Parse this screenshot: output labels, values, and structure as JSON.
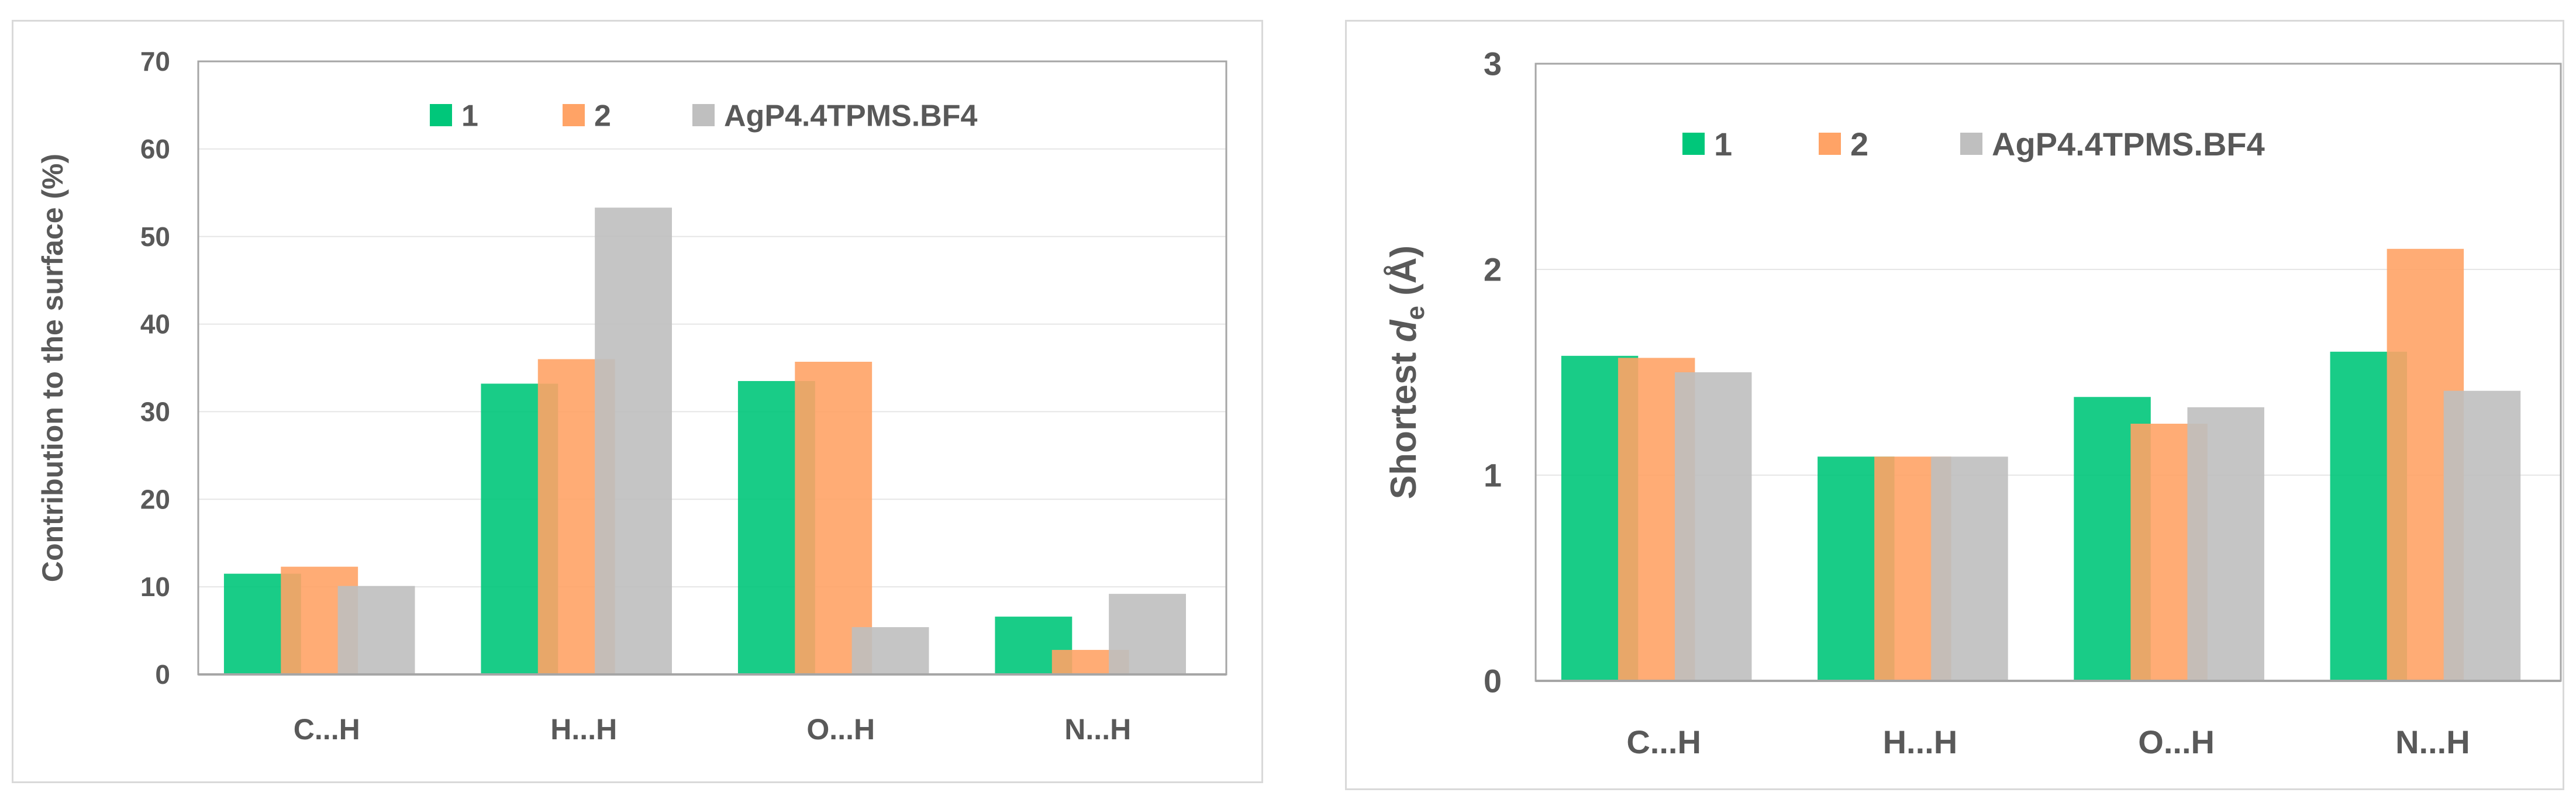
{
  "chart_data": [
    {
      "type": "bar",
      "title": "",
      "xlabel": "",
      "ylabel": "Contribution  to the surface  (%)",
      "ylim": [
        0,
        70
      ],
      "yticks": [
        0,
        10,
        20,
        30,
        40,
        50,
        60,
        70
      ],
      "grid": true,
      "legend_position": "top",
      "categories": [
        "C...H",
        "H...H",
        "O...H",
        "N...H"
      ],
      "series": [
        {
          "name": "1",
          "color": "#00c77a",
          "values": [
            11.5,
            33.2,
            33.5,
            6.6
          ]
        },
        {
          "name": "2",
          "color": "#ffa366",
          "values": [
            12.3,
            36.0,
            35.7,
            2.8
          ]
        },
        {
          "name": "AgP4.4TPMS.BF4",
          "color": "#bfbfbf",
          "values": [
            10.1,
            53.3,
            5.4,
            9.2
          ]
        }
      ]
    },
    {
      "type": "bar",
      "title": "",
      "xlabel": "",
      "ylabel_prefix": "Shortest ",
      "ylabel_var": "d",
      "ylabel_sub": "e",
      "ylabel_suffix": " (Å)",
      "ylim": [
        0,
        3
      ],
      "yticks": [
        0,
        1,
        2,
        3
      ],
      "grid": true,
      "legend_position": "top",
      "categories": [
        "C...H",
        "H...H",
        "O...H",
        "N...H"
      ],
      "series": [
        {
          "name": "1",
          "color": "#00c77a",
          "values": [
            1.58,
            1.09,
            1.38,
            1.6
          ]
        },
        {
          "name": "2",
          "color": "#ffa366",
          "values": [
            1.57,
            1.09,
            1.25,
            2.1
          ]
        },
        {
          "name": "AgP4.4TPMS.BF4",
          "color": "#bfbfbf",
          "values": [
            1.5,
            1.09,
            1.33,
            1.41
          ]
        }
      ]
    }
  ]
}
